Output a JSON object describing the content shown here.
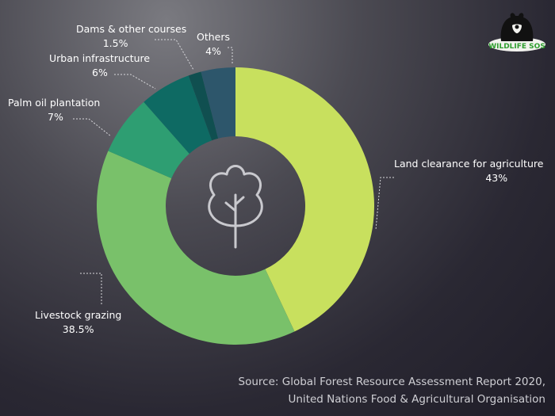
{
  "chart_data": {
    "type": "pie",
    "categories": [
      "Land clearance for agriculture",
      "Livestock grazing",
      "Palm oil plantation",
      "Urban infrastructure",
      "Dams & other courses",
      "Others"
    ],
    "values": [
      43,
      38.5,
      7,
      6,
      1.5,
      4
    ],
    "value_labels": [
      "43%",
      "38.5%",
      "7%",
      "6%",
      "1.5%",
      "4%"
    ],
    "colors": [
      "#c8e05e",
      "#79c16a",
      "#2e9e72",
      "#0e6a63",
      "#104f50",
      "#2d566b"
    ],
    "donut": true
  },
  "source": {
    "line1": "Source: Global Forest Resource Assessment Report 2020,",
    "line2": "United Nations Food & Agricultural Organisation"
  },
  "logo": {
    "text": "WILDLIFE SOS"
  },
  "center_icon": "tree-icon"
}
